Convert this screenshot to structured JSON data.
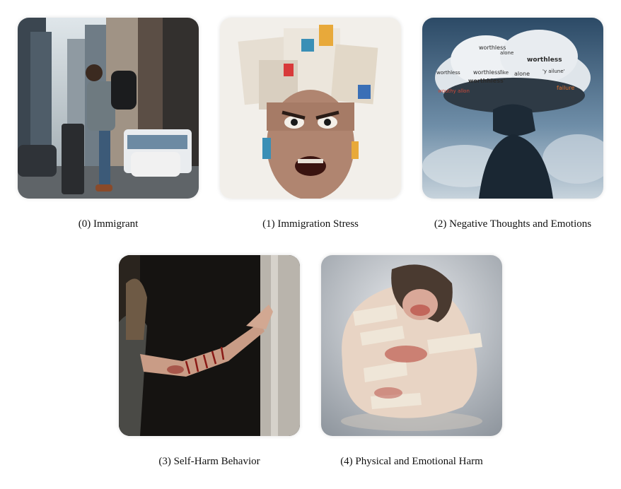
{
  "panels": [
    {
      "caption": "(0) Immigrant",
      "icon": "immigrant-with-suitcase-image"
    },
    {
      "caption": "(1) Immigration Stress",
      "icon": "stressed-face-collage-image"
    },
    {
      "caption": "(2) Negative Thoughts and Emotions",
      "icon": "thought-cloud-image",
      "words": [
        "worthless",
        "alone",
        "worthless",
        "'y ailune'",
        "worthless",
        "worthless'",
        "like",
        "alone",
        "worthhless'",
        "failure",
        "wouthy allon"
      ]
    },
    {
      "caption": "(3) Self-Harm Behavior",
      "icon": "injured-arm-image"
    },
    {
      "caption": "(4) Physical and Emotional Harm",
      "icon": "bandaged-person-image"
    }
  ],
  "colors": {
    "background": "#ffffff",
    "text": "#111111"
  }
}
